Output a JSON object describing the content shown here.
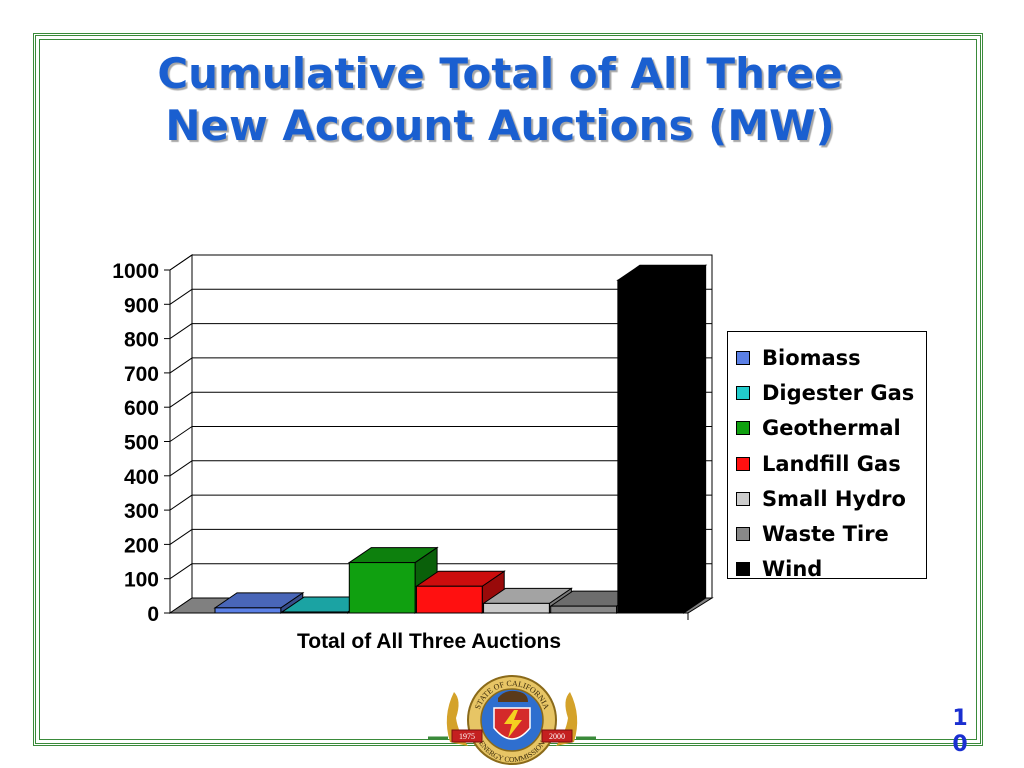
{
  "slide": {
    "title_line1": "Cumulative Total of All Three",
    "title_line2": "New Account Auctions (MW)",
    "page_number_line1": "1",
    "page_number_line2": "0"
  },
  "seal": {
    "top_text": "STATE OF CALIFORNIA",
    "bottom_text": "ENERGY COMMISSION",
    "year_left": "1975",
    "year_right": "2000"
  },
  "chart_data": {
    "type": "bar",
    "title": "",
    "categories": [
      "Total of All Three Auctions"
    ],
    "xlabel": "",
    "ylabel": "",
    "ylim": [
      0,
      1000
    ],
    "yticks": [
      "0",
      "100",
      "200",
      "300",
      "400",
      "500",
      "600",
      "700",
      "800",
      "900",
      "1000"
    ],
    "grid": true,
    "legend_position": "right",
    "series": [
      {
        "name": "Biomass",
        "values": [
          15
        ],
        "color": "#5b80e6"
      },
      {
        "name": "Digester Gas",
        "values": [
          3
        ],
        "color": "#22cccc"
      },
      {
        "name": "Geothermal",
        "values": [
          147
        ],
        "color": "#10a010"
      },
      {
        "name": "Landfill Gas",
        "values": [
          78
        ],
        "color": "#ff1010"
      },
      {
        "name": "Small Hydro",
        "values": [
          28
        ],
        "color": "#cccccc"
      },
      {
        "name": "Waste Tire",
        "values": [
          20
        ],
        "color": "#888888"
      },
      {
        "name": "Wind",
        "values": [
          970
        ],
        "color": "#000000"
      }
    ]
  }
}
